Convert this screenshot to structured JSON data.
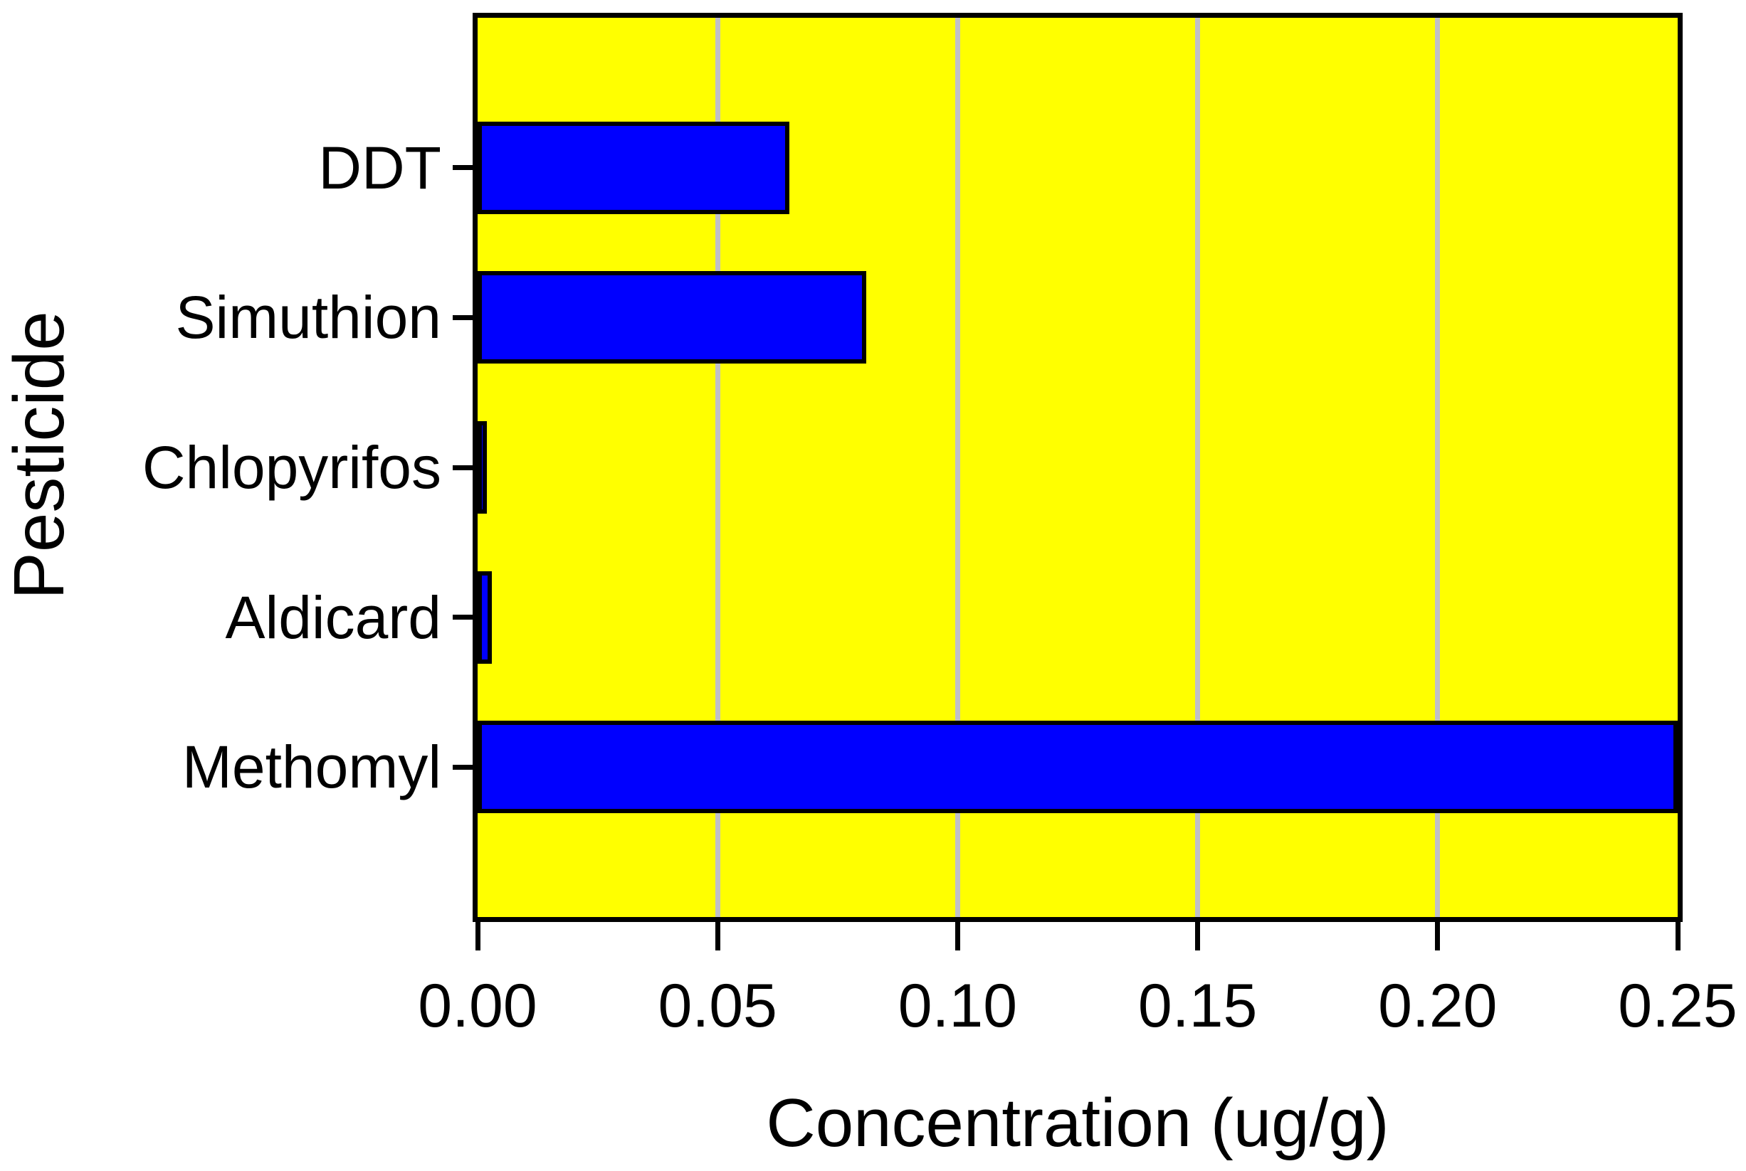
{
  "chart_data": {
    "type": "bar",
    "orientation": "horizontal",
    "title": "",
    "xlabel": "Concentration (ug/g)",
    "ylabel": "Pesticide",
    "categories": [
      "DDT",
      "Simuthion",
      "Chlopyrifos",
      "Aldicard",
      "Methomyl"
    ],
    "values": [
      0.065,
      0.081,
      0.002,
      0.003,
      0.25
    ],
    "xlim": [
      0,
      0.25
    ],
    "xtick_values": [
      0,
      0.05,
      0.1,
      0.15,
      0.2,
      0.25
    ],
    "xtick_labels": [
      "0.00",
      "0.05",
      "0.10",
      "0.15",
      "0.20",
      "0.25"
    ],
    "grid": "vertical-gridlines-at-xticks",
    "legend": "none",
    "colors": {
      "bar_fill": "#0000ff",
      "bar_border": "#000000",
      "plot_background": "#ffff00",
      "gridline": "#c0c0c8",
      "axis": "#000000",
      "text": "#000000",
      "page_background": "#ffffff"
    }
  }
}
